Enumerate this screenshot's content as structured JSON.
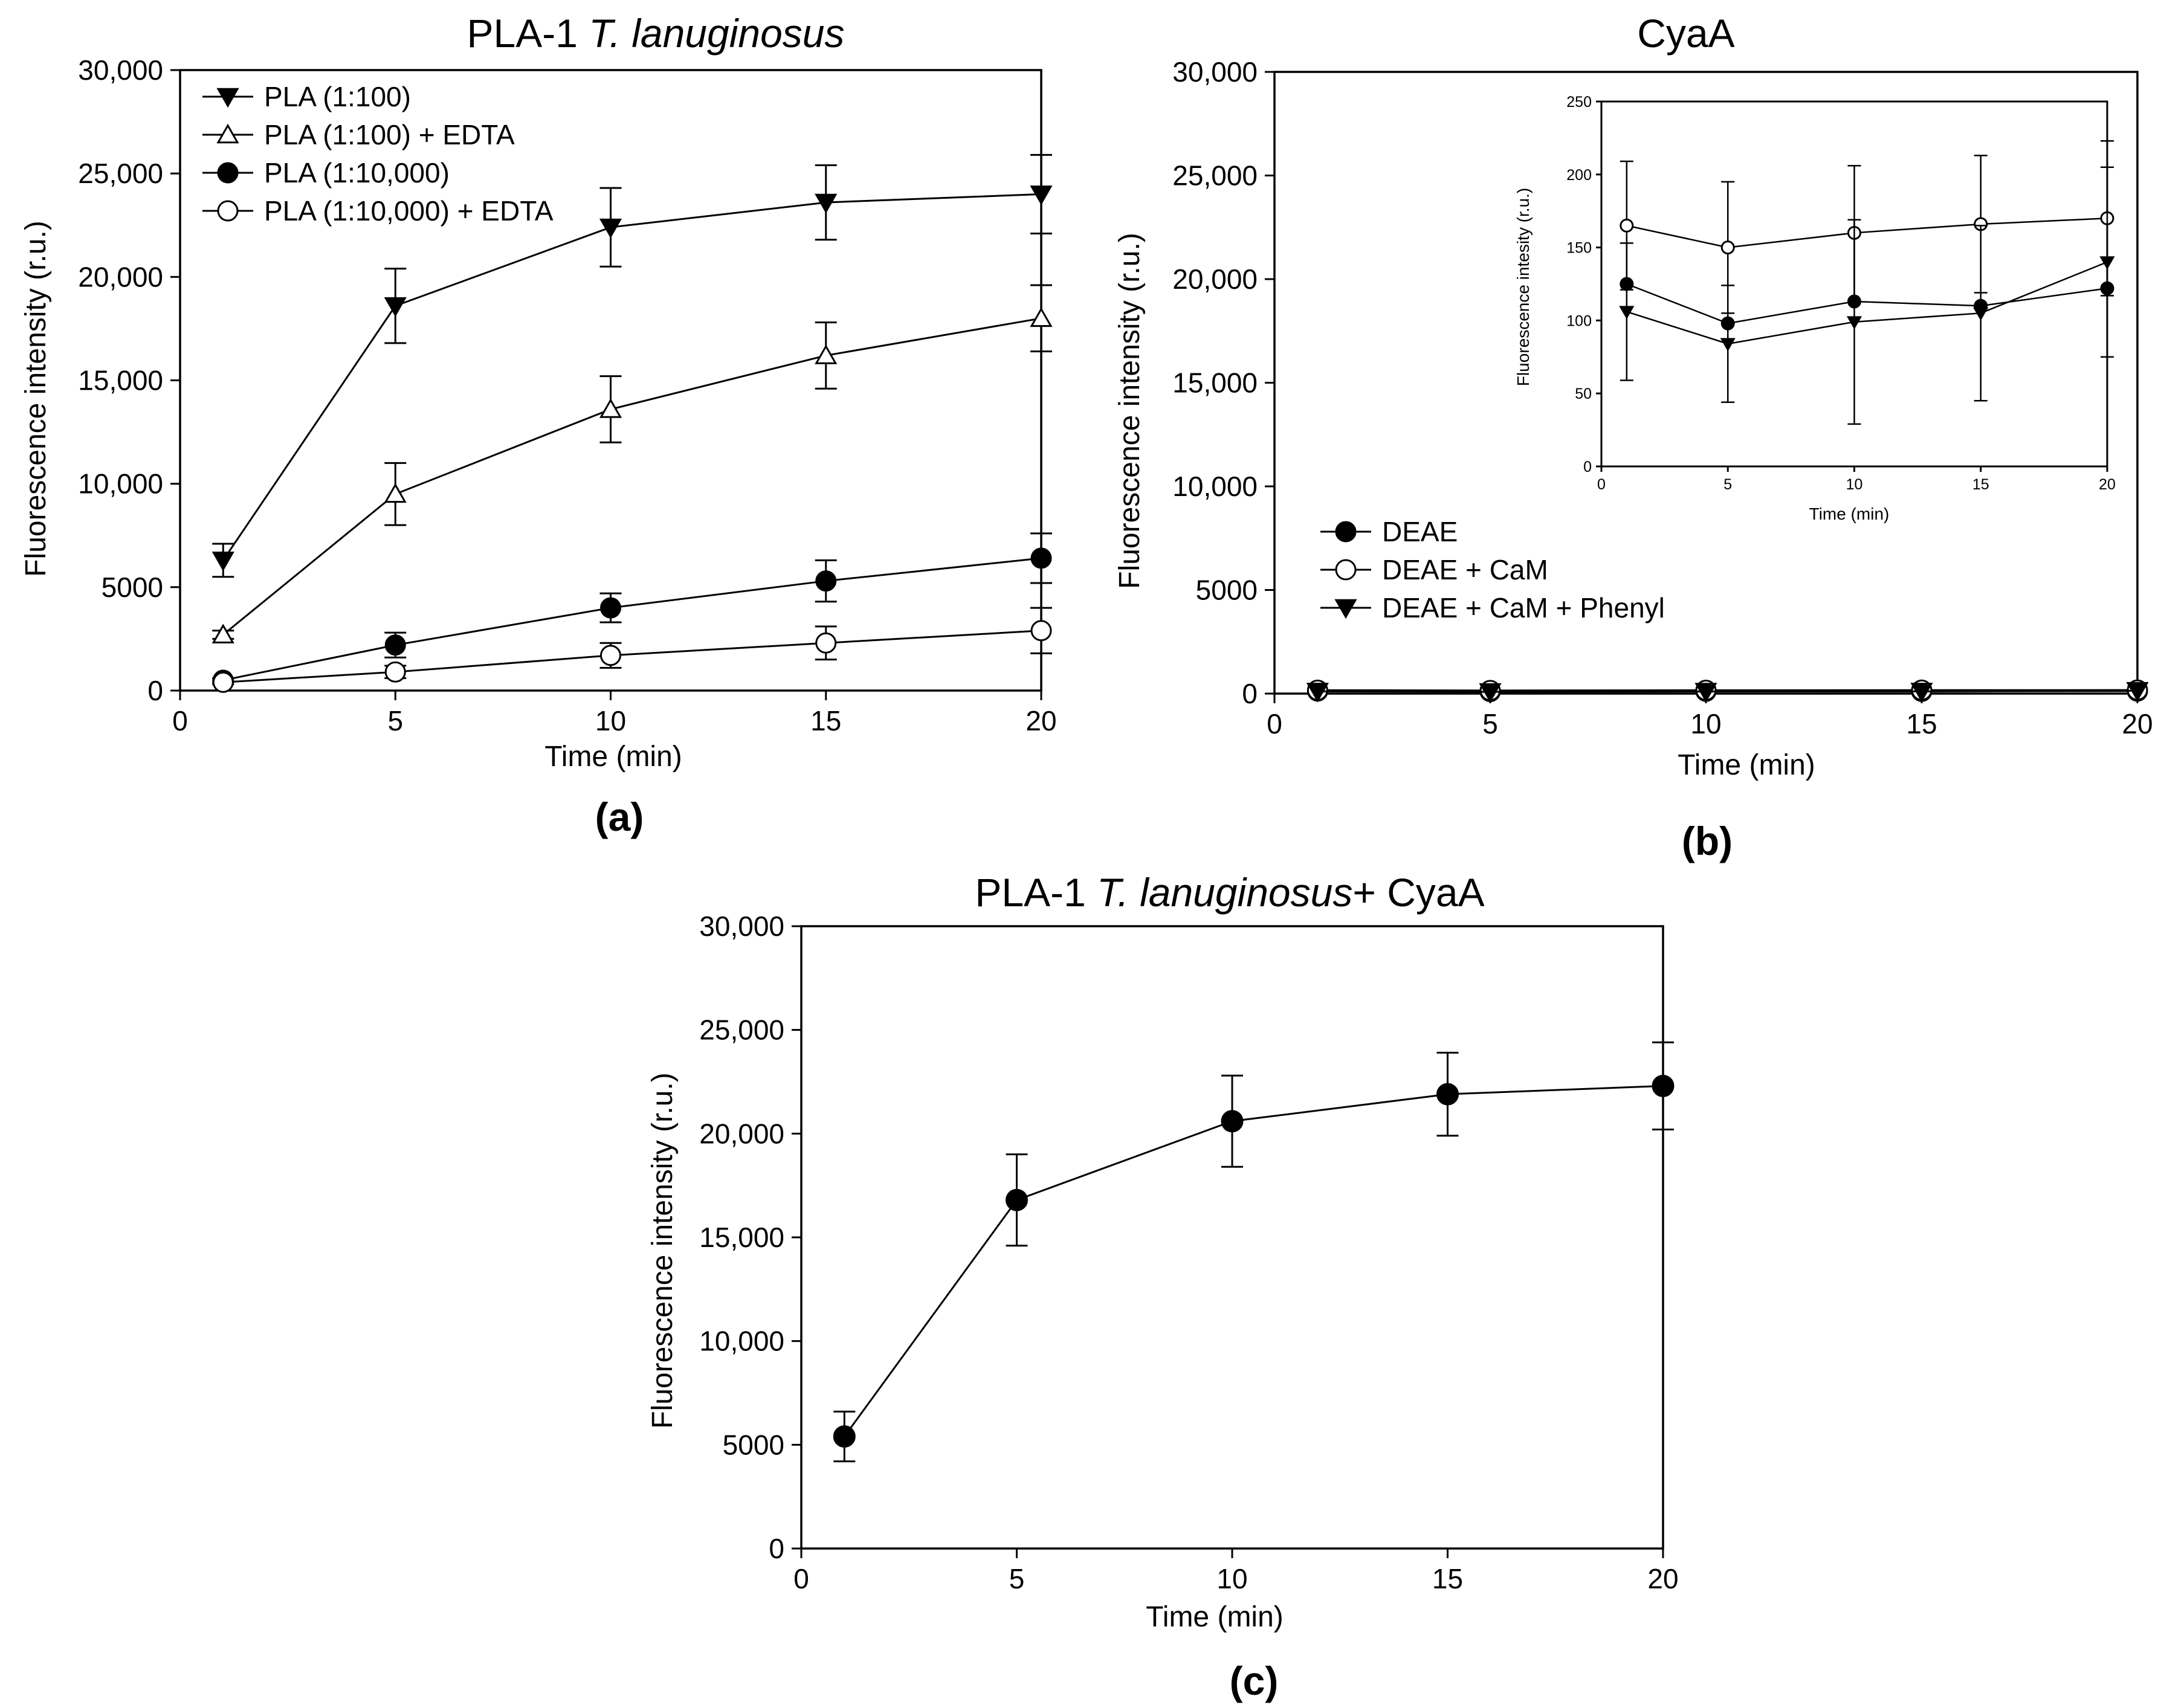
{
  "colors": {
    "ink": "#000000",
    "background": "#ffffff",
    "open_marker_fill": "#ffffff"
  },
  "chart_data": [
    {
      "id": "a",
      "type": "line",
      "panel_label": "(a)",
      "title_prefix": "PLA-1 ",
      "title_italic": "T. lanuginosus",
      "title_suffix": "",
      "xlabel": "Time (min)",
      "ylabel": "Fluorescence intensity (r.u.)",
      "xlim": [
        0,
        20
      ],
      "ylim": [
        0,
        30000
      ],
      "xticks": [
        0,
        5,
        10,
        15,
        20
      ],
      "xtick_labels": [
        "0",
        "5",
        "10",
        "15",
        "20"
      ],
      "yticks": [
        0,
        5000,
        10000,
        15000,
        20000,
        25000,
        30000
      ],
      "ytick_labels": [
        "0",
        "5000",
        "10,000",
        "15,000",
        "20,000",
        "25,000",
        "30,000"
      ],
      "legend_position": "top-left",
      "series": [
        {
          "name": "PLA (1:100)",
          "marker": "triangle-down-filled",
          "x": [
            1,
            5,
            10,
            15,
            20
          ],
          "y": [
            6300,
            18600,
            22400,
            23600,
            24000
          ],
          "err": [
            800,
            1800,
            1900,
            1800,
            1900
          ]
        },
        {
          "name": "PLA (1:100) + EDTA",
          "marker": "triangle-up-open",
          "x": [
            1,
            5,
            10,
            15,
            20
          ],
          "y": [
            2700,
            9500,
            13600,
            16200,
            18000
          ],
          "err": [
            200,
            1500,
            1600,
            1600,
            1600
          ]
        },
        {
          "name": "PLA (1:10,000)",
          "marker": "circle-filled",
          "x": [
            1,
            5,
            10,
            15,
            20
          ],
          "y": [
            500,
            2200,
            4000,
            5300,
            6400
          ],
          "err": [
            100,
            600,
            700,
            1000,
            1200
          ]
        },
        {
          "name": "PLA (1:10,000)  + EDTA",
          "marker": "circle-open",
          "x": [
            1,
            5,
            10,
            15,
            20
          ],
          "y": [
            400,
            900,
            1700,
            2300,
            2900
          ],
          "err": [
            100,
            300,
            600,
            800,
            1100
          ]
        }
      ]
    },
    {
      "id": "b",
      "type": "line",
      "panel_label": "(b)",
      "title_prefix": "CyaA",
      "title_italic": "",
      "title_suffix": "",
      "xlabel": "Time  (min)",
      "ylabel": "Fluorescence intensity (r.u.)",
      "xlim": [
        0,
        20
      ],
      "ylim": [
        0,
        30000
      ],
      "xticks": [
        0,
        5,
        10,
        15,
        20
      ],
      "xtick_labels": [
        "0",
        "5",
        "10",
        "15",
        "20"
      ],
      "yticks": [
        0,
        5000,
        10000,
        15000,
        20000,
        25000,
        30000
      ],
      "ytick_labels": [
        "0",
        "5000",
        "10,000",
        "15,000",
        "20,000",
        "25,000",
        "30,000"
      ],
      "legend_position": "lower-left",
      "series": [
        {
          "name": "DEAE",
          "marker": "circle-filled",
          "x": [
            1,
            5,
            10,
            15,
            20
          ],
          "y": [
            125,
            98,
            113,
            110,
            122
          ],
          "err": [
            0,
            0,
            0,
            0,
            0
          ]
        },
        {
          "name": "DEAE + CaM",
          "marker": "circle-open",
          "x": [
            1,
            5,
            10,
            15,
            20
          ],
          "y": [
            165,
            150,
            160,
            166,
            170
          ],
          "err": [
            0,
            0,
            0,
            0,
            0
          ]
        },
        {
          "name": "DEAE + CaM + Phenyl",
          "marker": "triangle-down-filled",
          "x": [
            1,
            5,
            10,
            15,
            20
          ],
          "y": [
            106,
            84,
            99,
            105,
            140
          ],
          "err": [
            0,
            0,
            0,
            0,
            0
          ]
        }
      ],
      "inset": {
        "xlabel": "Time (min)",
        "ylabel": "Fluorescence intesity (r.u.)",
        "xlim": [
          0,
          20
        ],
        "ylim": [
          0,
          250
        ],
        "xticks": [
          0,
          5,
          10,
          15,
          20
        ],
        "xtick_labels": [
          "0",
          "5",
          "10",
          "15",
          "20"
        ],
        "yticks": [
          0,
          50,
          100,
          150,
          200,
          250
        ],
        "ytick_labels": [
          "0",
          "50",
          "100",
          "150",
          "200",
          "250"
        ],
        "series": [
          {
            "name": "DEAE + CaM",
            "marker": "circle-open",
            "x": [
              1,
              5,
              10,
              15,
              20
            ],
            "y": [
              165,
              150,
              160,
              166,
              170
            ],
            "err": [
              44,
              45,
              46,
              47,
              53
            ]
          },
          {
            "name": "DEAE",
            "marker": "circle-filled",
            "x": [
              1,
              5,
              10,
              15,
              20
            ],
            "y": [
              125,
              98,
              113,
              110,
              122
            ],
            "err": [
              0,
              0,
              0,
              0,
              0
            ]
          },
          {
            "name": "DEAE + CaM + Phenyl",
            "marker": "triangle-down-filled",
            "x": [
              1,
              5,
              10,
              15,
              20
            ],
            "y": [
              106,
              84,
              99,
              105,
              140
            ],
            "err": [
              47,
              40,
              70,
              60,
              65
            ]
          }
        ]
      }
    },
    {
      "id": "c",
      "type": "line",
      "panel_label": "(c)",
      "title_prefix": "PLA-1 ",
      "title_italic": "T. lanuginosus",
      "title_suffix": "+ CyaA",
      "xlabel": "Time  (min)",
      "ylabel": "Fluorescence intensity (r.u.)",
      "xlim": [
        0,
        20
      ],
      "ylim": [
        0,
        30000
      ],
      "xticks": [
        0,
        5,
        10,
        15,
        20
      ],
      "xtick_labels": [
        "0",
        "5",
        "10",
        "15",
        "20"
      ],
      "yticks": [
        0,
        5000,
        10000,
        15000,
        20000,
        25000,
        30000
      ],
      "ytick_labels": [
        "0",
        "5000",
        "10,000",
        "15,000",
        "20,000",
        "25,000",
        "30,000"
      ],
      "legend_position": "none",
      "series": [
        {
          "name": "PLA-1 T. lanuginosus + CyaA",
          "marker": "circle-filled",
          "x": [
            1,
            5,
            10,
            15,
            20
          ],
          "y": [
            5400,
            16800,
            20600,
            21900,
            22300
          ],
          "err": [
            1200,
            2200,
            2200,
            2000,
            2100
          ]
        }
      ]
    }
  ]
}
